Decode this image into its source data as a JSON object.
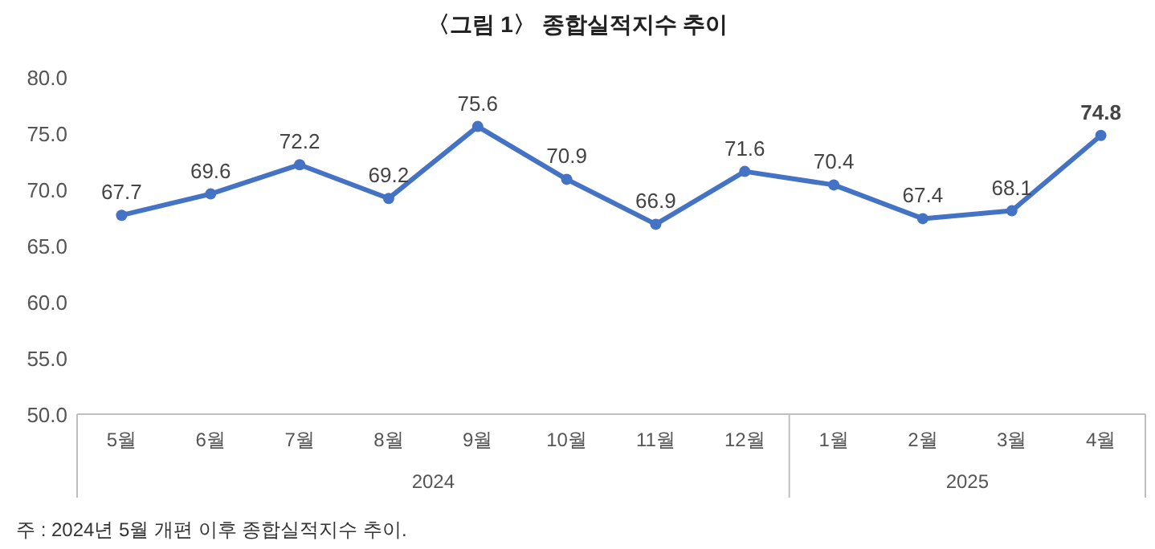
{
  "chart_data": {
    "type": "line",
    "title": "〈그림 1〉 종합실적지수 추이",
    "categories": [
      "5월",
      "6월",
      "7월",
      "8월",
      "9월",
      "10월",
      "11월",
      "12월",
      "1월",
      "2월",
      "3월",
      "4월"
    ],
    "series": [
      {
        "color": "#4472c4",
        "values": [
          67.7,
          69.6,
          72.2,
          69.2,
          75.6,
          70.9,
          66.9,
          71.6,
          70.4,
          67.4,
          68.1,
          74.8
        ]
      }
    ],
    "ylim": [
      50,
      80
    ],
    "yticks": [
      {
        "value": 50,
        "label": "50.0"
      },
      {
        "value": 55,
        "label": "55.0"
      },
      {
        "value": 60,
        "label": "60.0"
      },
      {
        "value": 65,
        "label": "65.0"
      },
      {
        "value": 70,
        "label": "70.0"
      },
      {
        "value": 75,
        "label": "75.0"
      },
      {
        "value": 80,
        "label": "80.0"
      }
    ],
    "data_labels": true,
    "marker": "circle",
    "grid": false,
    "annotations": [
      "2024",
      "2025",
      "주 : 2024년 5월 개편 이후 종합실적지수 추이."
    ]
  }
}
